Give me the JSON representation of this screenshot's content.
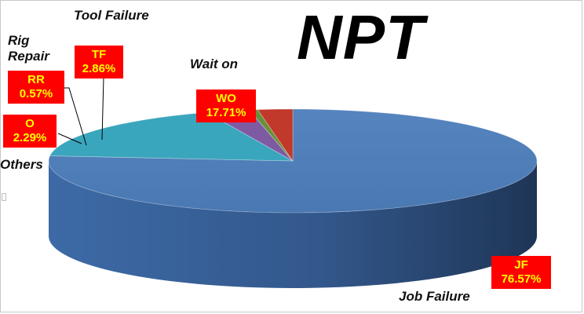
{
  "chart_data": {
    "type": "pie",
    "title": "NPT",
    "slices": [
      {
        "code": "JF",
        "name": "Job Failure",
        "value": 76.57,
        "label": "76.57%",
        "color": "#4a78b2"
      },
      {
        "code": "WO",
        "name": "Wait on",
        "value": 17.71,
        "label": "17.71%",
        "color": "#3aa6bd"
      },
      {
        "code": "TF",
        "name": "Tool Failure",
        "value": 2.86,
        "label": "2.86%",
        "color": "#7e5aa3"
      },
      {
        "code": "RR",
        "name": "Rig Repair",
        "value": 0.57,
        "label": "0.57%",
        "color": "#6a8f3a"
      },
      {
        "code": "O",
        "name": "Others",
        "value": 2.29,
        "label": "2.29%",
        "color": "#c0392b"
      }
    ],
    "label_style": {
      "background": "#ff0000",
      "text": "#ffff00"
    }
  }
}
